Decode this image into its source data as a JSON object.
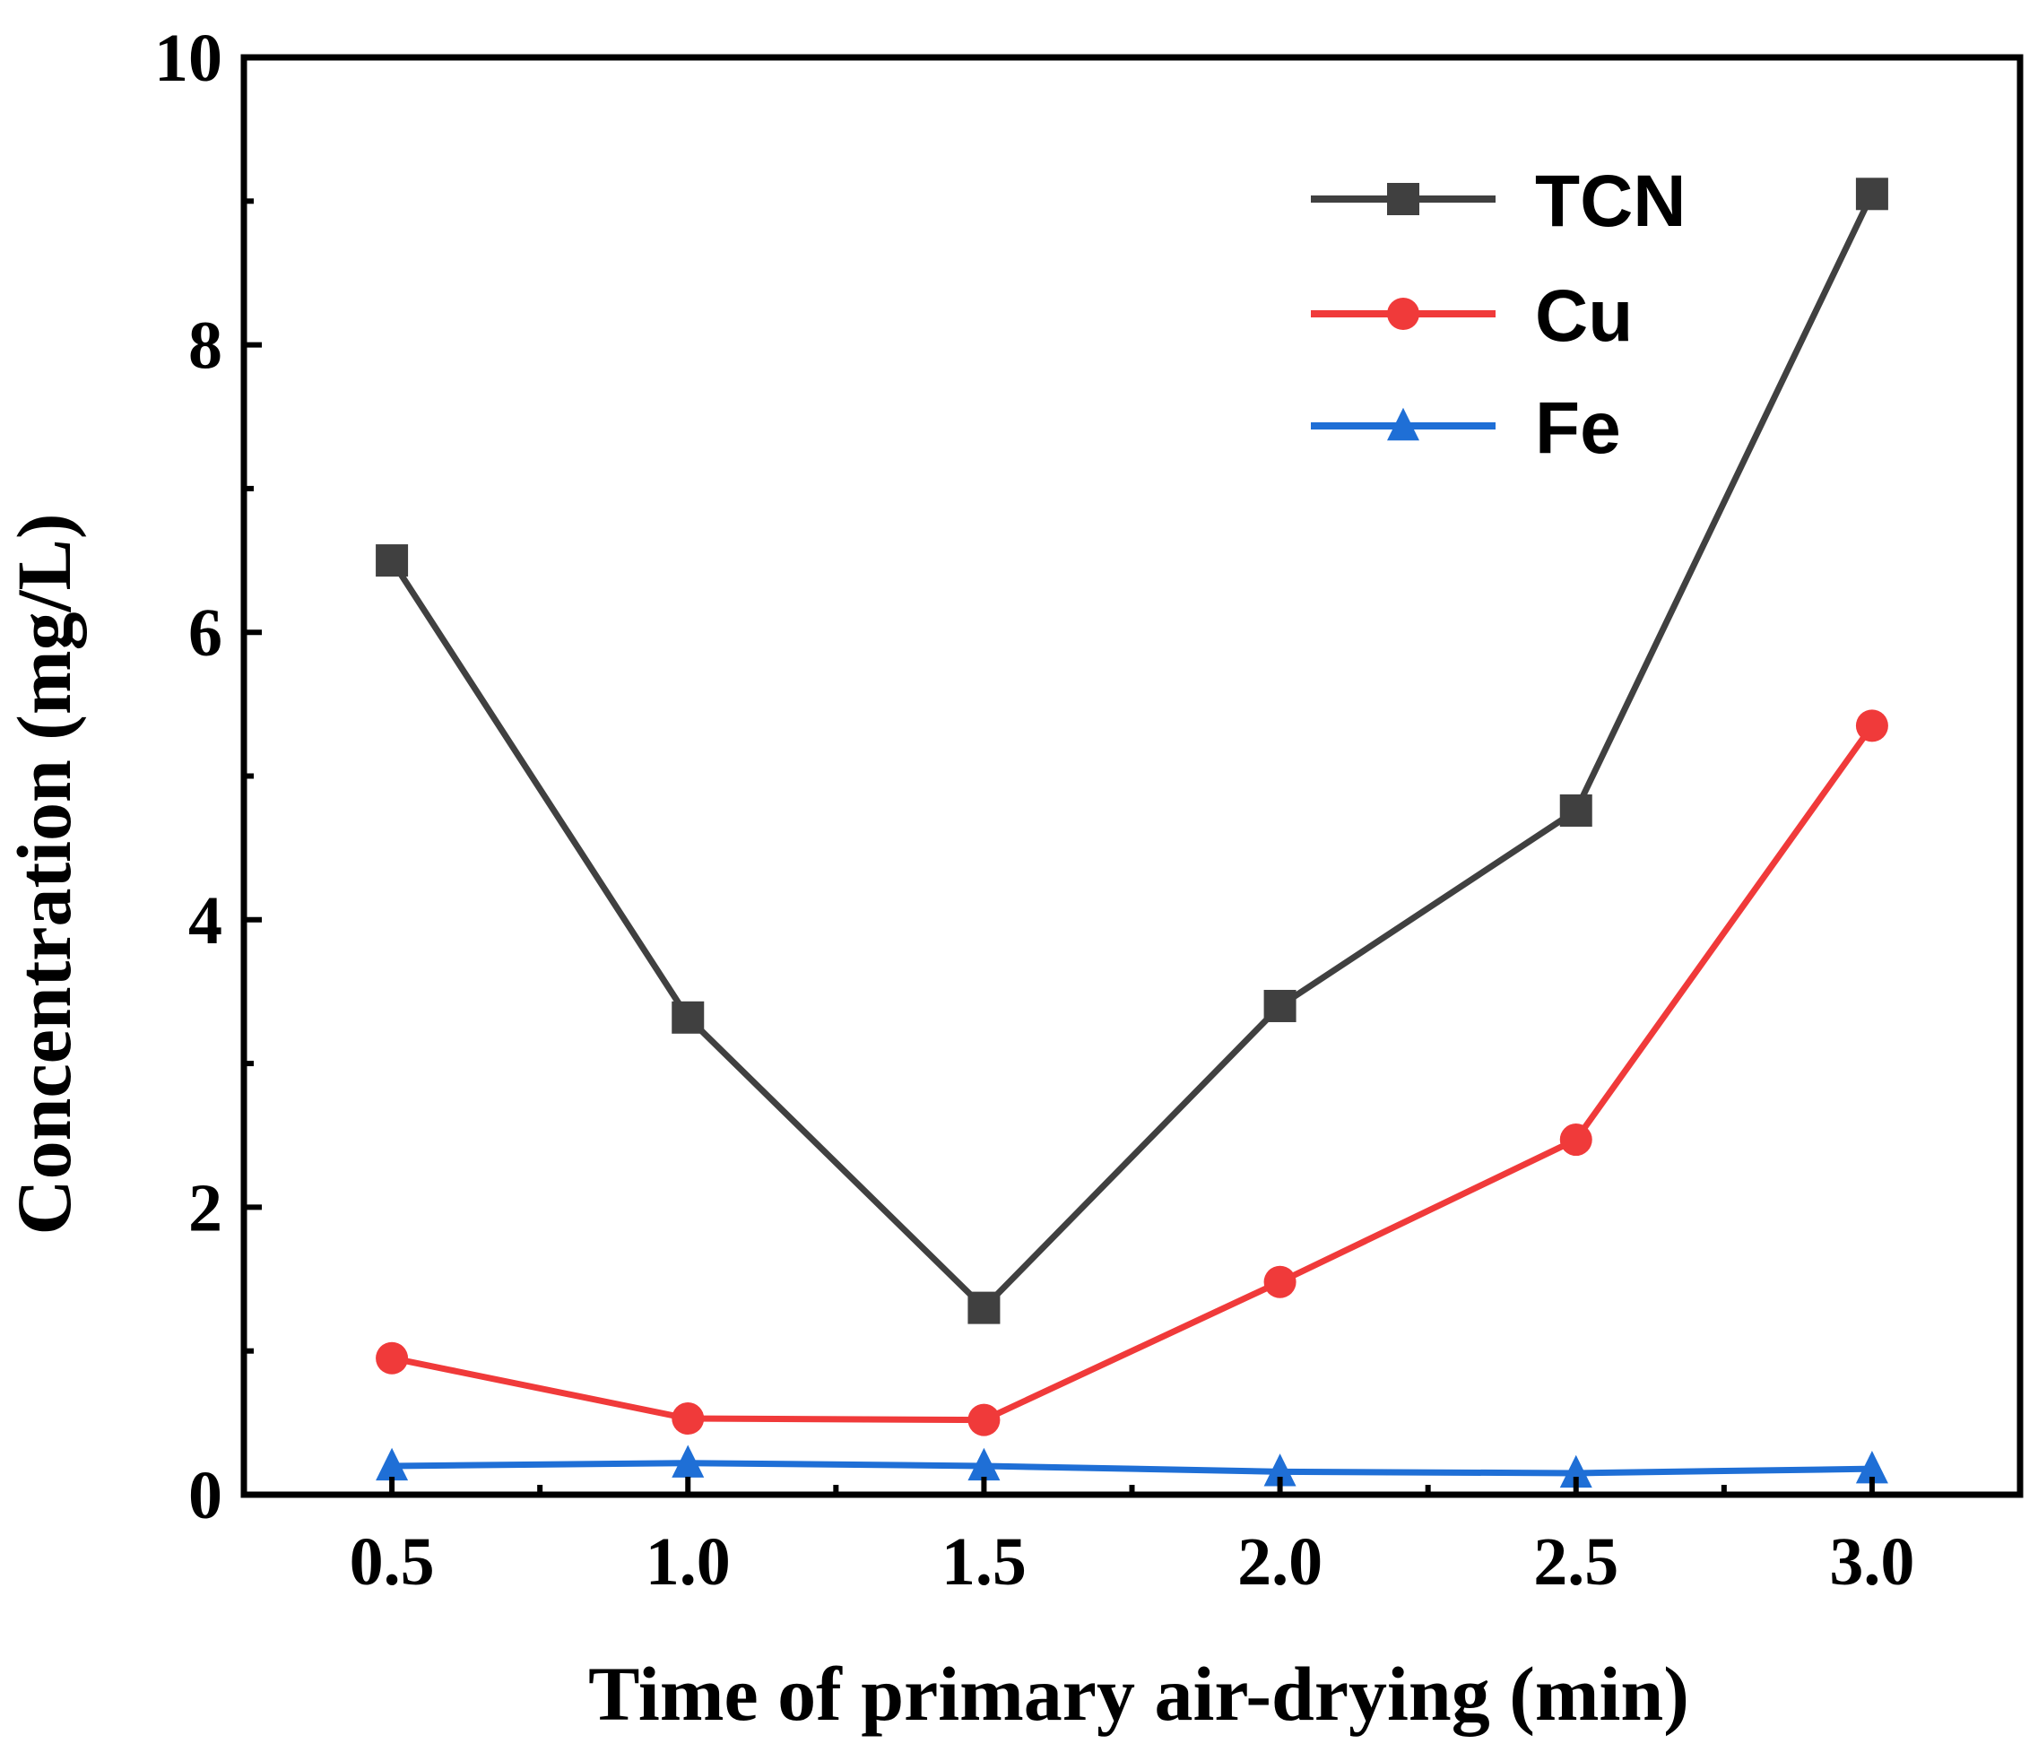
{
  "chart_data": {
    "type": "line",
    "title": "",
    "xlabel": "Time of primary air-drying  (min)",
    "ylabel": "Concentration (mg/L)",
    "x": [
      0.5,
      1.0,
      1.5,
      2.0,
      2.5,
      3.0
    ],
    "x_tick_labels": [
      "0.5",
      "1.0",
      "1.5",
      "2.0",
      "2.5",
      "3.0"
    ],
    "xlim": [
      0.25,
      3.25
    ],
    "ylim": [
      0,
      10
    ],
    "y_ticks": [
      0,
      2,
      4,
      6,
      8,
      10
    ],
    "y_tick_labels": [
      "0",
      "2",
      "4",
      "6",
      "8",
      "10"
    ],
    "y_minor_ticks": [
      1,
      3,
      5,
      7,
      9
    ],
    "x_minor_ticks": [
      0.75,
      1.25,
      1.75,
      2.25,
      2.75
    ],
    "grid": false,
    "legend_position": "top-right",
    "series": [
      {
        "name": "TCN",
        "color": "#404040",
        "marker": "square",
        "values": [
          6.5,
          3.32,
          1.3,
          3.4,
          4.76,
          9.05
        ]
      },
      {
        "name": "Cu",
        "color": "#f03a3a",
        "marker": "circle",
        "values": [
          0.95,
          0.53,
          0.52,
          1.48,
          2.47,
          5.35
        ]
      },
      {
        "name": "Fe",
        "color": "#1f6fd6",
        "marker": "triangle",
        "values": [
          0.2,
          0.22,
          0.2,
          0.16,
          0.15,
          0.18
        ]
      }
    ]
  }
}
